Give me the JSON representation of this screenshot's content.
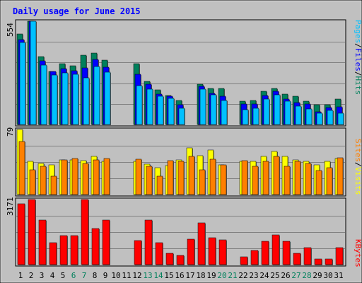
{
  "chart_data": [
    {
      "type": "bar",
      "panel": "hits",
      "title": "Daily usage for June 2015",
      "y_max_label": "554",
      "y_max": 554,
      "categories": [
        "1",
        "2",
        "3",
        "4",
        "5",
        "6",
        "7",
        "8",
        "9",
        "10",
        "11",
        "12",
        "13",
        "14",
        "15",
        "16",
        "17",
        "18",
        "19",
        "20",
        "21",
        "22",
        "23",
        "24",
        "25",
        "26",
        "27",
        "28",
        "29",
        "30",
        "31"
      ],
      "series": [
        {
          "name": "Hits",
          "color": "#00805c",
          "values": [
            485,
            554,
            365,
            285,
            325,
            315,
            370,
            385,
            345,
            0,
            0,
            325,
            230,
            185,
            155,
            128,
            0,
            218,
            195,
            195,
            0,
            125,
            130,
            180,
            195,
            165,
            150,
            125,
            108,
            105,
            135
          ]
        },
        {
          "name": "Files",
          "color": "#0000ff",
          "values": [
            455,
            554,
            340,
            285,
            300,
            290,
            305,
            350,
            308,
            0,
            0,
            270,
            215,
            162,
            150,
            108,
            0,
            205,
            168,
            150,
            0,
            110,
            110,
            155,
            180,
            135,
            118,
            110,
            70,
            90,
            95
          ]
        },
        {
          "name": "Pages",
          "color": "#00c0ff",
          "values": [
            440,
            554,
            320,
            265,
            278,
            270,
            250,
            310,
            280,
            0,
            0,
            210,
            190,
            150,
            140,
            88,
            0,
            188,
            160,
            128,
            0,
            80,
            88,
            135,
            158,
            125,
            100,
            84,
            60,
            76,
            60
          ]
        }
      ]
    },
    {
      "type": "bar",
      "panel": "visits",
      "y_max_label": "79",
      "y_max": 79,
      "categories": [
        "1",
        "2",
        "3",
        "4",
        "5",
        "6",
        "7",
        "8",
        "9",
        "10",
        "11",
        "12",
        "13",
        "14",
        "15",
        "16",
        "17",
        "18",
        "19",
        "20",
        "21",
        "22",
        "23",
        "24",
        "25",
        "26",
        "27",
        "28",
        "29",
        "30",
        "31"
      ],
      "series": [
        {
          "name": "Visits",
          "color": "#ffff00",
          "values": [
            79,
            40,
            38,
            36,
            42,
            42,
            41,
            46,
            40,
            0,
            0,
            40,
            37,
            33,
            35,
            42,
            57,
            47,
            54,
            36,
            0,
            40,
            40,
            46,
            52,
            46,
            42,
            40,
            36,
            40,
            44
          ]
        },
        {
          "name": "Sites",
          "color": "#ff8000",
          "values": [
            64,
            30,
            34,
            22,
            42,
            44,
            38,
            42,
            44,
            0,
            0,
            43,
            34,
            22,
            41,
            40,
            46,
            30,
            43,
            36,
            0,
            41,
            34,
            40,
            46,
            34,
            40,
            38,
            29,
            33,
            45
          ]
        }
      ]
    },
    {
      "type": "bar",
      "panel": "kbytes",
      "y_max_label": "3171",
      "y_max": 3171,
      "categories": [
        "1",
        "2",
        "3",
        "4",
        "5",
        "6",
        "7",
        "8",
        "9",
        "10",
        "11",
        "12",
        "13",
        "14",
        "15",
        "16",
        "17",
        "18",
        "19",
        "20",
        "21",
        "22",
        "23",
        "24",
        "25",
        "26",
        "27",
        "28",
        "29",
        "30",
        "31"
      ],
      "series": [
        {
          "name": "KBytes",
          "color": "#ff0000",
          "values": [
            2950,
            3171,
            2170,
            1080,
            1400,
            1400,
            3171,
            1750,
            2170,
            0,
            0,
            1180,
            2170,
            1080,
            550,
            450,
            1250,
            2020,
            1300,
            1200,
            0,
            380,
            700,
            1150,
            1450,
            1150,
            550,
            830,
            260,
            260,
            830
          ]
        }
      ]
    }
  ],
  "x_labels": [
    "1",
    "2",
    "3",
    "4",
    "5",
    "6",
    "7",
    "8",
    "9",
    "10",
    "11",
    "12",
    "13",
    "14",
    "15",
    "16",
    "17",
    "18",
    "19",
    "20",
    "21",
    "22",
    "23",
    "24",
    "25",
    "26",
    "27",
    "28",
    "29",
    "30",
    "31"
  ],
  "weekend_days": [
    6,
    7,
    13,
    14,
    20,
    21,
    27,
    28
  ],
  "colors": {
    "title": "#0000ff",
    "weekday_label": "#000000",
    "weekend_label": "#00805c",
    "panel_bg": "#c0c0c0",
    "grid": "#808080"
  },
  "legends": {
    "top": [
      {
        "text": "Pages",
        "color": "#00c0ff"
      },
      {
        "text": "/",
        "color": "#000000"
      },
      {
        "text": "Files",
        "color": "#0000ff"
      },
      {
        "text": "/",
        "color": "#000000"
      },
      {
        "text": "Hits",
        "color": "#00805c"
      }
    ],
    "middle": [
      {
        "text": "Sites",
        "color": "#ff8000"
      },
      {
        "text": "/",
        "color": "#000000"
      },
      {
        "text": "Visits",
        "color": "#ffff00"
      }
    ],
    "bottom": [
      {
        "text": "KBytes",
        "color": "#ff0000"
      }
    ]
  }
}
